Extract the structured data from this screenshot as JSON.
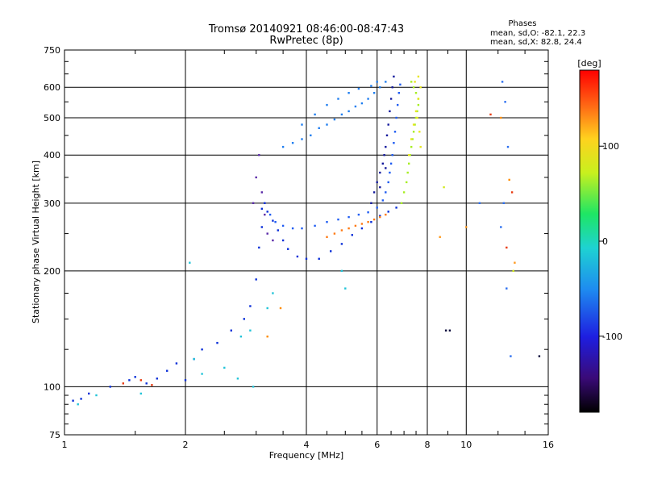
{
  "chart_data": {
    "type": "scatter",
    "title": "Tromsø 20140921 08:46:00-08:47:43",
    "subtitle": "RwPretec (8p)",
    "xlabel": "Frequency [MHz]",
    "ylabel": "Stationary phase Virtual Height [km]",
    "x_scale": "log",
    "y_scale": "log",
    "xlim": [
      1,
      16
    ],
    "ylim": [
      75,
      750
    ],
    "x_ticks": [
      1,
      2,
      4,
      6,
      8,
      10,
      16
    ],
    "x_tick_labels": [
      "1",
      "2",
      "4",
      "6",
      "8",
      "10",
      "16"
    ],
    "y_ticks": [
      75,
      100,
      200,
      300,
      400,
      500,
      600,
      750
    ],
    "y_tick_labels": [
      "75",
      "100",
      "200",
      "300",
      "400",
      "500",
      "600",
      "750"
    ],
    "grid": true,
    "phase_stats": {
      "heading": "Phases",
      "line_o": "mean, sd,O: -82.1, 22.3",
      "line_x": "mean, sd,X:  82.8, 24.4"
    },
    "colorbar": {
      "label": "[deg]",
      "range": [
        -180,
        180
      ],
      "ticks": [
        100,
        0,
        -100
      ],
      "tick_labels": [
        "100",
        "0",
        "-100"
      ]
    },
    "series": [
      {
        "color": "#0a2fd8",
        "points": [
          [
            1.05,
            92
          ],
          [
            1.1,
            93
          ],
          [
            1.15,
            96
          ],
          [
            1.3,
            100
          ],
          [
            1.45,
            104
          ],
          [
            1.5,
            106
          ],
          [
            1.6,
            102
          ],
          [
            1.7,
            105
          ],
          [
            1.8,
            110
          ],
          [
            1.9,
            115
          ],
          [
            2.0,
            104
          ],
          [
            2.1,
            118
          ],
          [
            2.2,
            125
          ],
          [
            2.4,
            130
          ],
          [
            2.6,
            140
          ],
          [
            2.8,
            150
          ],
          [
            2.9,
            162
          ],
          [
            3.0,
            190
          ],
          [
            3.05,
            230
          ],
          [
            3.1,
            260
          ],
          [
            3.1,
            290
          ],
          [
            3.15,
            300
          ],
          [
            3.2,
            285
          ],
          [
            3.3,
            270
          ],
          [
            3.4,
            255
          ],
          [
            3.5,
            240
          ],
          [
            3.6,
            228
          ],
          [
            3.8,
            218
          ],
          [
            4.0,
            215
          ],
          [
            4.3,
            215
          ],
          [
            4.6,
            225
          ],
          [
            4.9,
            235
          ],
          [
            5.2,
            248
          ],
          [
            5.5,
            258
          ],
          [
            5.8,
            268
          ],
          [
            6.1,
            278
          ],
          [
            6.4,
            285
          ],
          [
            6.7,
            292
          ]
        ]
      },
      {
        "color": "#1f5cf2",
        "points": [
          [
            3.25,
            280
          ],
          [
            3.35,
            268
          ],
          [
            3.5,
            262
          ],
          [
            3.7,
            258
          ],
          [
            3.9,
            258
          ],
          [
            4.2,
            262
          ],
          [
            4.5,
            268
          ],
          [
            4.8,
            272
          ],
          [
            5.1,
            276
          ],
          [
            5.4,
            280
          ],
          [
            5.7,
            284
          ],
          [
            6.0,
            292
          ],
          [
            6.2,
            305
          ],
          [
            6.3,
            320
          ],
          [
            6.4,
            340
          ],
          [
            6.45,
            360
          ],
          [
            6.5,
            380
          ],
          [
            6.55,
            400
          ],
          [
            6.6,
            430
          ],
          [
            6.65,
            460
          ],
          [
            6.7,
            500
          ],
          [
            6.75,
            540
          ],
          [
            6.8,
            580
          ],
          [
            6.85,
            610
          ]
        ]
      },
      {
        "color": "#1f7ef0",
        "points": [
          [
            3.5,
            420
          ],
          [
            3.7,
            430
          ],
          [
            3.9,
            440
          ],
          [
            4.1,
            450
          ],
          [
            4.3,
            470
          ],
          [
            4.5,
            480
          ],
          [
            4.7,
            495
          ],
          [
            4.9,
            510
          ],
          [
            5.1,
            520
          ],
          [
            5.3,
            535
          ],
          [
            5.5,
            545
          ],
          [
            5.7,
            560
          ],
          [
            5.9,
            580
          ],
          [
            6.1,
            600
          ],
          [
            6.3,
            620
          ],
          [
            3.9,
            480
          ],
          [
            4.2,
            510
          ],
          [
            4.5,
            540
          ],
          [
            4.8,
            560
          ],
          [
            5.1,
            580
          ],
          [
            5.4,
            595
          ],
          [
            5.8,
            605
          ],
          [
            6.0,
            620
          ]
        ]
      },
      {
        "color": "#141a9c",
        "points": [
          [
            5.9,
            320
          ],
          [
            6.0,
            340
          ],
          [
            6.1,
            360
          ],
          [
            6.2,
            380
          ],
          [
            6.25,
            400
          ],
          [
            6.3,
            420
          ],
          [
            6.35,
            450
          ],
          [
            6.4,
            480
          ],
          [
            6.45,
            520
          ],
          [
            6.5,
            560
          ],
          [
            6.55,
            600
          ],
          [
            6.6,
            640
          ],
          [
            5.8,
            300
          ],
          [
            6.1,
            330
          ],
          [
            6.3,
            370
          ]
        ]
      },
      {
        "color": "#22c4d8",
        "points": [
          [
            1.08,
            90
          ],
          [
            1.2,
            95
          ],
          [
            1.55,
            96
          ],
          [
            2.1,
            118
          ],
          [
            2.2,
            108
          ],
          [
            2.5,
            112
          ],
          [
            2.7,
            105
          ],
          [
            2.95,
            100
          ],
          [
            3.2,
            160
          ],
          [
            3.3,
            175
          ],
          [
            2.75,
            135
          ],
          [
            2.9,
            140
          ],
          [
            4.9,
            200
          ],
          [
            5.0,
            180
          ],
          [
            2.05,
            210
          ]
        ]
      },
      {
        "color": "#a6ee22",
        "points": [
          [
            6.9,
            300
          ],
          [
            7.0,
            320
          ],
          [
            7.1,
            340
          ],
          [
            7.15,
            360
          ],
          [
            7.2,
            380
          ],
          [
            7.25,
            400
          ],
          [
            7.3,
            420
          ],
          [
            7.35,
            440
          ],
          [
            7.4,
            460
          ],
          [
            7.45,
            480
          ],
          [
            7.5,
            500
          ],
          [
            7.55,
            520
          ],
          [
            7.6,
            540
          ],
          [
            7.6,
            560
          ],
          [
            7.5,
            580
          ],
          [
            7.4,
            600
          ],
          [
            7.3,
            620
          ]
        ]
      },
      {
        "color": "#e8e620",
        "points": [
          [
            7.2,
            400
          ],
          [
            7.3,
            440
          ],
          [
            7.4,
            480
          ],
          [
            7.5,
            520
          ],
          [
            7.6,
            560
          ],
          [
            7.7,
            600
          ],
          [
            7.6,
            640
          ],
          [
            7.45,
            620
          ],
          [
            7.55,
            500
          ],
          [
            7.65,
            460
          ],
          [
            7.7,
            420
          ]
        ]
      },
      {
        "color": "#ff7a14",
        "points": [
          [
            4.5,
            245
          ],
          [
            4.7,
            250
          ],
          [
            4.9,
            255
          ],
          [
            5.1,
            258
          ],
          [
            5.3,
            262
          ],
          [
            5.5,
            265
          ],
          [
            5.7,
            268
          ],
          [
            5.9,
            272
          ],
          [
            6.1,
            276
          ],
          [
            6.3,
            280
          ]
        ]
      },
      {
        "color": "#ff8c00",
        "points": [
          [
            3.45,
            160
          ],
          [
            3.2,
            135
          ],
          [
            12.2,
            500
          ],
          [
            12.8,
            345
          ]
        ]
      },
      {
        "color": "#e83a10",
        "points": [
          [
            1.4,
            102
          ],
          [
            1.55,
            104
          ],
          [
            1.65,
            101
          ],
          [
            12.6,
            230
          ],
          [
            13.0,
            320
          ],
          [
            11.5,
            510
          ]
        ]
      },
      {
        "color": "#5a2aa8",
        "points": [
          [
            2.95,
            300
          ],
          [
            3.0,
            350
          ],
          [
            3.05,
            400
          ],
          [
            3.1,
            320
          ],
          [
            3.15,
            280
          ],
          [
            3.2,
            250
          ],
          [
            3.3,
            240
          ]
        ]
      },
      {
        "color": "#0a0a3a",
        "points": [
          [
            8.9,
            140
          ],
          [
            9.1,
            140
          ],
          [
            15.2,
            120
          ]
        ]
      },
      {
        "color": "#2a6ef0",
        "points": [
          [
            12.3,
            620
          ],
          [
            12.5,
            550
          ],
          [
            12.7,
            420
          ],
          [
            12.4,
            300
          ],
          [
            12.2,
            260
          ],
          [
            12.6,
            180
          ],
          [
            12.9,
            120
          ],
          [
            10.8,
            300
          ]
        ]
      },
      {
        "color": "#ff9a1e",
        "points": [
          [
            8.6,
            245
          ],
          [
            10.0,
            260
          ],
          [
            13.2,
            210
          ]
        ]
      },
      {
        "color": "#d2e81e",
        "points": [
          [
            8.8,
            330
          ],
          [
            13.1,
            200
          ]
        ]
      }
    ]
  }
}
